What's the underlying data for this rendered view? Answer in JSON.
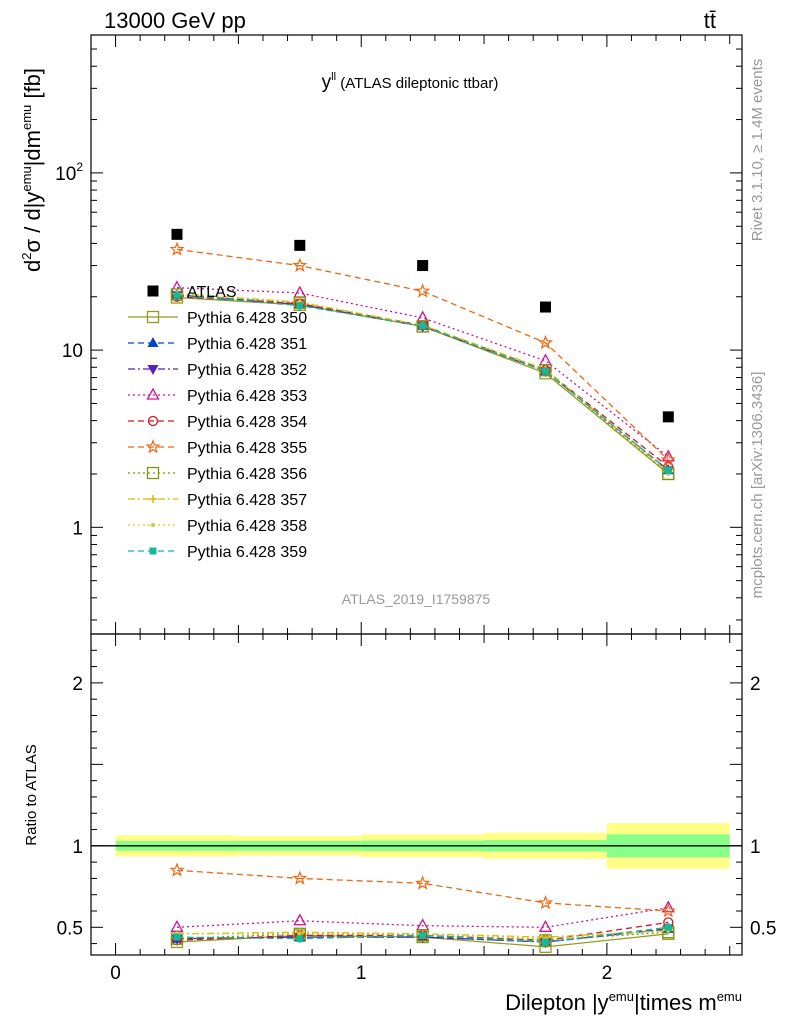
{
  "header": {
    "left": "13000 GeV pp",
    "right": "tt̄"
  },
  "side_labels": {
    "rivet": "Rivet 3.1.10, ≥ 1.4M events",
    "mcplots": "mcplots.cern.ch [arXiv:1306.3436]"
  },
  "chart_data": [
    {
      "type": "scatter",
      "panel": "main",
      "title_main": "y",
      "title_sup": "ll",
      "title_rest": " (ATLAS dileptonic ttbar)",
      "analysis_label": "ATLAS_2019_I1759875",
      "ylabel_parts": [
        "d",
        "2",
        "σ / d|y",
        "emu",
        "|dm",
        "emu",
        " [fb]"
      ],
      "yscale": "log",
      "ylim": [
        0.25,
        600
      ],
      "xlim": [
        -0.1,
        2.55
      ],
      "yticks": [
        {
          "v": 1,
          "label": "1"
        },
        {
          "v": 10,
          "label": "10"
        },
        {
          "v": 100,
          "label": "10",
          "sup": "2"
        }
      ],
      "x": [
        0.25,
        0.75,
        1.25,
        1.75,
        2.25
      ],
      "series": [
        {
          "name": "ATLAS",
          "color": "#000000",
          "marker": "square-filled",
          "line": "none",
          "values": [
            45,
            39,
            30,
            17.5,
            4.2
          ]
        },
        {
          "name": "Pythia 6.428 350",
          "color": "#999922",
          "marker": "square-open",
          "line": "solid",
          "values": [
            19.8,
            18.0,
            13.6,
            7.4,
            2.0
          ]
        },
        {
          "name": "Pythia 6.428 351",
          "color": "#0044cc",
          "marker": "triangle-up-filled",
          "line": "dashed",
          "values": [
            20.5,
            18.2,
            13.7,
            7.6,
            2.1
          ]
        },
        {
          "name": "Pythia 6.428 352",
          "color": "#5522bb",
          "marker": "triangle-down-filled",
          "line": "dashdot",
          "values": [
            20.3,
            18.1,
            13.6,
            7.6,
            2.1
          ]
        },
        {
          "name": "Pythia 6.428 353",
          "color": "#cc1199",
          "marker": "triangle-up-open",
          "line": "dotted",
          "values": [
            22.5,
            21.0,
            15.2,
            8.7,
            2.5
          ]
        },
        {
          "name": "Pythia 6.428 354",
          "color": "#dd1122",
          "marker": "circle-open",
          "line": "dashed",
          "values": [
            20.0,
            18.3,
            13.8,
            7.7,
            2.2
          ]
        },
        {
          "name": "Pythia 6.428 355",
          "color": "#ee6611",
          "marker": "star-open",
          "line": "dashed",
          "values": [
            37.0,
            30.0,
            21.5,
            11.0,
            2.4
          ]
        },
        {
          "name": "Pythia 6.428 356",
          "color": "#779911",
          "marker": "square-open",
          "line": "dotted",
          "values": [
            20.6,
            18.5,
            13.6,
            7.7,
            2.0
          ]
        },
        {
          "name": "Pythia 6.428 357",
          "color": "#ddbb00",
          "marker": "cross",
          "line": "dashdot",
          "values": [
            20.8,
            18.6,
            13.8,
            7.8,
            2.05
          ]
        },
        {
          "name": "Pythia 6.428 358",
          "color": "#cccc33",
          "marker": "dot",
          "line": "dotted",
          "values": [
            20.9,
            18.7,
            13.8,
            7.8,
            2.05
          ]
        },
        {
          "name": "Pythia 6.428 359",
          "color": "#11bb99",
          "marker": "square-filled-small",
          "line": "dashed",
          "values": [
            20.4,
            17.8,
            13.7,
            7.6,
            2.1
          ]
        }
      ]
    },
    {
      "type": "line",
      "panel": "ratio",
      "ylabel": "Ratio to ATLAS",
      "xlabel_parts": [
        "Dilepton |y",
        "emu",
        "|times m",
        "emu"
      ],
      "ylim": [
        0.33,
        2.3
      ],
      "xlim": [
        -0.1,
        2.55
      ],
      "yticks": [
        {
          "v": 0.5,
          "label": "0.5"
        },
        {
          "v": 1,
          "label": "1"
        },
        {
          "v": 2,
          "label": "2"
        }
      ],
      "xticks": [
        {
          "v": 0,
          "label": "0"
        },
        {
          "v": 1,
          "label": "1"
        },
        {
          "v": 2,
          "label": "2"
        }
      ],
      "bands": [
        {
          "x0": 0.0,
          "x1": 0.5,
          "inner": 0.03,
          "outer": 0.065
        },
        {
          "x0": 0.5,
          "x1": 1.0,
          "inner": 0.03,
          "outer": 0.06
        },
        {
          "x0": 1.0,
          "x1": 1.5,
          "inner": 0.032,
          "outer": 0.07
        },
        {
          "x0": 1.5,
          "x1": 2.0,
          "inner": 0.035,
          "outer": 0.08
        },
        {
          "x0": 2.0,
          "x1": 2.5,
          "inner": 0.07,
          "outer": 0.14
        }
      ],
      "band_colors": {
        "outer": "#ffff88",
        "inner": "#88ff88"
      },
      "x": [
        0.25,
        0.75,
        1.25,
        1.75,
        2.25
      ],
      "series": [
        {
          "name": "Pythia 6.428 350",
          "values": [
            0.41,
            0.45,
            0.44,
            0.38,
            0.46
          ]
        },
        {
          "name": "Pythia 6.428 351",
          "values": [
            0.43,
            0.44,
            0.44,
            0.41,
            0.49
          ]
        },
        {
          "name": "Pythia 6.428 352",
          "values": [
            0.43,
            0.44,
            0.44,
            0.41,
            0.49
          ]
        },
        {
          "name": "Pythia 6.428 353",
          "values": [
            0.5,
            0.54,
            0.51,
            0.5,
            0.62
          ]
        },
        {
          "name": "Pythia 6.428 354",
          "values": [
            0.42,
            0.45,
            0.45,
            0.42,
            0.53
          ]
        },
        {
          "name": "Pythia 6.428 355",
          "values": [
            0.85,
            0.8,
            0.77,
            0.65,
            0.6
          ]
        },
        {
          "name": "Pythia 6.428 356",
          "values": [
            0.43,
            0.46,
            0.45,
            0.42,
            0.47
          ]
        },
        {
          "name": "Pythia 6.428 357",
          "values": [
            0.46,
            0.47,
            0.46,
            0.44,
            0.48
          ]
        },
        {
          "name": "Pythia 6.428 358",
          "values": [
            0.46,
            0.46,
            0.46,
            0.43,
            0.48
          ]
        },
        {
          "name": "Pythia 6.428 359",
          "values": [
            0.44,
            0.43,
            0.45,
            0.41,
            0.5
          ]
        }
      ]
    }
  ]
}
